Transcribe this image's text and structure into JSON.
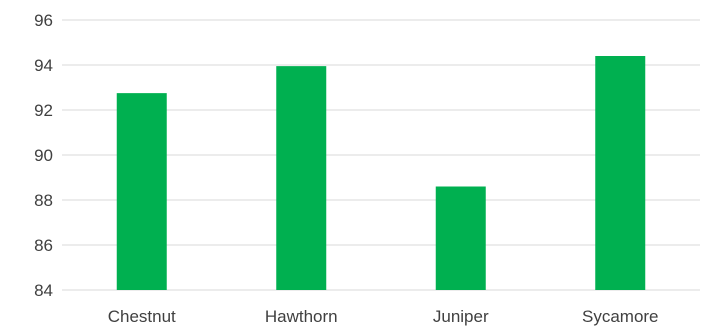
{
  "chart_data": {
    "type": "bar",
    "categories": [
      "Chestnut",
      "Hawthorn",
      "Juniper",
      "Sycamore"
    ],
    "values": [
      92.75,
      93.95,
      88.6,
      94.4
    ],
    "ylim": [
      84,
      96
    ],
    "yticks": [
      84,
      86,
      88,
      90,
      92,
      94,
      96
    ],
    "grid": true,
    "bar_color": "#00b050"
  }
}
